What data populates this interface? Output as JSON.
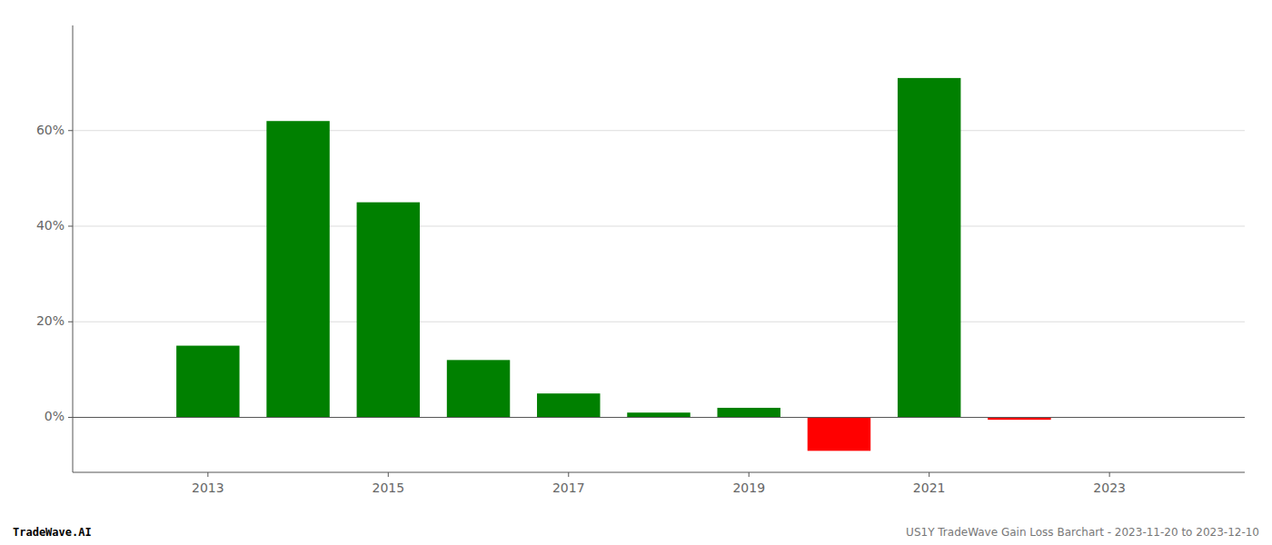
{
  "chart_data": {
    "type": "bar",
    "x": [
      2013,
      2014,
      2015,
      2016,
      2017,
      2018,
      2019,
      2020,
      2021,
      2022,
      2023
    ],
    "values": [
      0.15,
      0.62,
      0.45,
      0.12,
      0.05,
      0.01,
      0.02,
      -0.07,
      0.71,
      -0.005,
      0.0
    ],
    "colors": [
      "#008000",
      "#008000",
      "#008000",
      "#008000",
      "#008000",
      "#008000",
      "#008000",
      "#ff0000",
      "#008000",
      "#ff0000",
      "#008000"
    ],
    "xlim": [
      2011.5,
      2024.5
    ],
    "xticks": [
      2013,
      2015,
      2017,
      2019,
      2021,
      2023
    ],
    "ylim": [
      -0.115,
      0.82
    ],
    "yticks": [
      {
        "value": 0.0,
        "label": "0%"
      },
      {
        "value": 0.2,
        "label": "20%"
      },
      {
        "value": 0.4,
        "label": "40%"
      },
      {
        "value": 0.6,
        "label": "60%"
      }
    ],
    "grid": true,
    "annotations": [
      "TradeWave.AI",
      "US1Y TradeWave Gain Loss Barchart - 2023-11-20 to 2023-12-10"
    ]
  }
}
